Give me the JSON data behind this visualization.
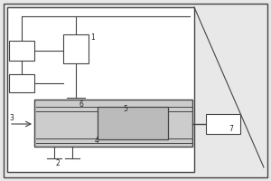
{
  "bg_color": "#e8e8e8",
  "outer_border_color": "#888888",
  "inner_rect_color": "#555555",
  "line_color": "#444444",
  "box_fill": "#ffffff",
  "frame_fill": "#cccccc",
  "cylinder_fill": "#bbbbbb",
  "label_color": "#222222",
  "label_fontsize": 5.5
}
